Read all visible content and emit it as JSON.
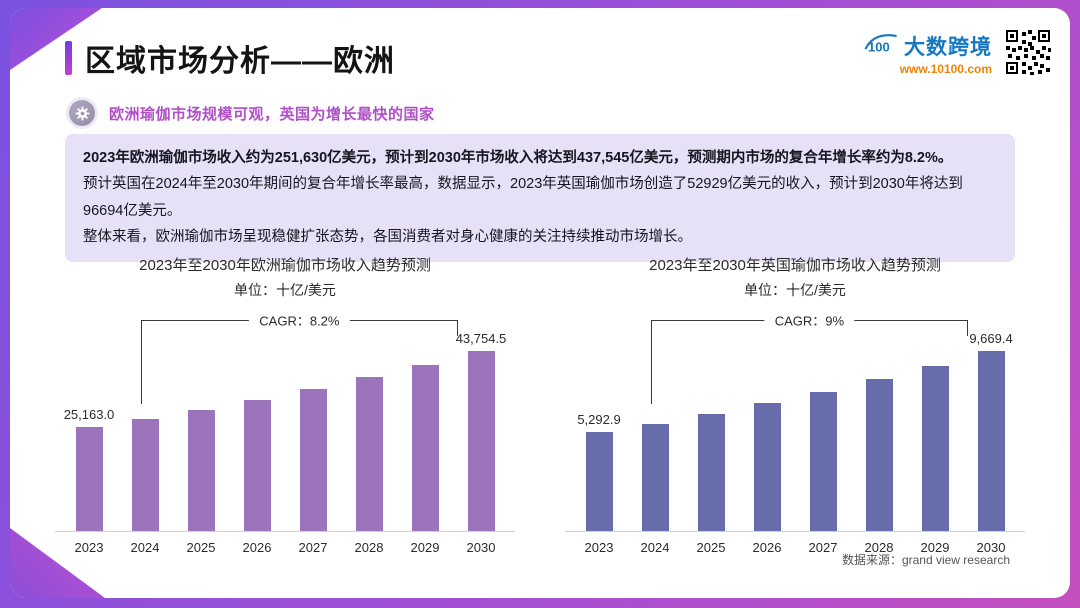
{
  "header": {
    "title": "区域市场分析——欧洲",
    "subtitle": "欧洲瑜伽市场规模可观，英国为增长最快的国家"
  },
  "brand": {
    "name": "大数跨境",
    "url": "www.10100.com"
  },
  "summary": {
    "line1": "2023年欧洲瑜伽市场收入约为251,630亿美元，预计到2030年市场收入将达到437,545亿美元，预测期内市场的复合年增长率约为8.2%。",
    "line2": "预计英国在2024年至2030年期间的复合年增长率最高，数据显示，2023年英国瑜伽市场创造了52929亿美元的收入，预计到2030年将达到96694亿美元。",
    "line3": "整体来看，欧洲瑜伽市场呈现稳健扩张态势，各国消费者对身心健康的关注持续推动市场增长。"
  },
  "footer": {
    "source": "数据来源：grand view research"
  },
  "chart_data": [
    {
      "type": "bar",
      "title": "2023年至2030年欧洲瑜伽市场收入趋势预测",
      "subtitle": "单位：十亿/美元",
      "categories": [
        "2023",
        "2024",
        "2025",
        "2026",
        "2027",
        "2028",
        "2029",
        "2030"
      ],
      "values": [
        25163.0,
        27226,
        29459,
        31875,
        34489,
        37317,
        40377,
        43754.5
      ],
      "first_label": "25,163.0",
      "last_label": "43,754.5",
      "cagr_label": "CAGR：8.2%",
      "bar_color": "#9b74bb",
      "ylim": [
        0,
        43754.5
      ],
      "legend": "none",
      "grid": false
    },
    {
      "type": "bar",
      "title": "2023年至2030年英国瑜伽市场收入趋势预测",
      "subtitle": "单位：十亿/美元",
      "categories": [
        "2023",
        "2024",
        "2025",
        "2026",
        "2027",
        "2028",
        "2029",
        "2030"
      ],
      "values": [
        5292.9,
        5770,
        6290,
        6855,
        7470,
        8140,
        8870,
        9669.4
      ],
      "first_label": "5,292.9",
      "last_label": "9,669.4",
      "cagr_label": "CAGR：9%",
      "bar_color": "#676cab",
      "ylim": [
        0,
        9669.4
      ],
      "legend": "none",
      "grid": false
    }
  ]
}
